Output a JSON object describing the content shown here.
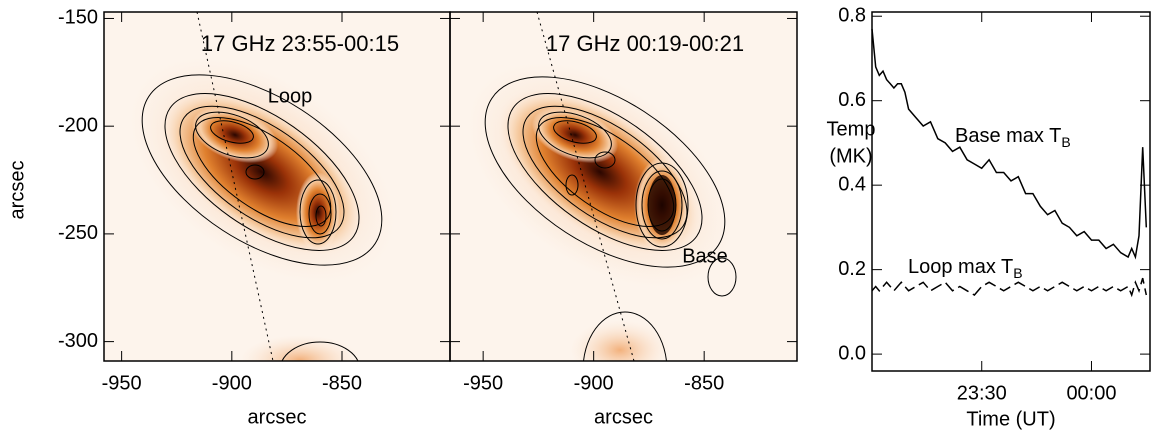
{
  "chart_data": [
    {
      "type": "image",
      "title": "17 GHz 23:55-00:15",
      "xlabel": "arcsec",
      "ylabel": "arcsec",
      "xlim": [
        -958,
        -801
      ],
      "ylim": [
        -309,
        -147
      ],
      "xticks": [
        -950,
        -900,
        -850
      ],
      "yticks": [
        -150,
        -200,
        -250,
        -300
      ],
      "annotations": [
        "Loop"
      ]
    },
    {
      "type": "image",
      "title": "17 GHz 00:19-00:21",
      "xlabel": "arcsec",
      "xlim": [
        -965,
        -808
      ],
      "ylim": [
        -309,
        -147
      ],
      "xticks": [
        -950,
        -900,
        -850
      ],
      "yticks": [
        -150,
        -200,
        -250,
        -300
      ],
      "annotations": [
        "Base"
      ]
    },
    {
      "type": "line",
      "xlabel": "Time (UT)",
      "ylabel_lines": [
        "Temp",
        "(MK)"
      ],
      "xlim": [
        1380,
        1456
      ],
      "ylim": [
        -0.04,
        0.81
      ],
      "xticks": [
        {
          "value": 1410,
          "label": "23:30"
        },
        {
          "value": 1440,
          "label": "00:00"
        }
      ],
      "yticks": [
        {
          "value": 0,
          "label": "0.0"
        },
        0.2,
        0.4,
        0.6,
        0.8
      ],
      "x": [
        1380,
        1381,
        1382,
        1383,
        1384,
        1385,
        1386,
        1387,
        1388,
        1389,
        1390,
        1392,
        1394,
        1396,
        1398,
        1400,
        1402,
        1404,
        1406,
        1408,
        1410,
        1412,
        1414,
        1416,
        1418,
        1420,
        1422,
        1424,
        1426,
        1428,
        1430,
        1432,
        1434,
        1436,
        1438,
        1440,
        1442,
        1444,
        1446,
        1448,
        1450,
        1451,
        1452,
        1453,
        1454,
        1455
      ],
      "series": [
        {
          "name": "Base max T",
          "subscript": "B",
          "color": "#000000",
          "dash": false,
          "values": [
            0.77,
            0.68,
            0.66,
            0.67,
            0.65,
            0.64,
            0.63,
            0.64,
            0.64,
            0.62,
            0.58,
            0.56,
            0.54,
            0.55,
            0.51,
            0.5,
            0.48,
            0.49,
            0.46,
            0.45,
            0.44,
            0.46,
            0.43,
            0.43,
            0.41,
            0.42,
            0.38,
            0.38,
            0.35,
            0.33,
            0.34,
            0.31,
            0.3,
            0.28,
            0.29,
            0.27,
            0.27,
            0.25,
            0.26,
            0.24,
            0.23,
            0.25,
            0.23,
            0.28,
            0.49,
            0.3
          ]
        },
        {
          "name": "Loop max T",
          "subscript": "B",
          "color": "#000000",
          "dash": true,
          "values": [
            0.15,
            0.16,
            0.15,
            0.16,
            0.17,
            0.16,
            0.15,
            0.16,
            0.17,
            0.16,
            0.15,
            0.16,
            0.17,
            0.15,
            0.16,
            0.17,
            0.15,
            0.16,
            0.15,
            0.14,
            0.16,
            0.17,
            0.16,
            0.15,
            0.16,
            0.17,
            0.16,
            0.15,
            0.16,
            0.15,
            0.16,
            0.17,
            0.16,
            0.15,
            0.16,
            0.15,
            0.16,
            0.15,
            0.16,
            0.15,
            0.16,
            0.14,
            0.17,
            0.15,
            0.18,
            0.14
          ]
        }
      ]
    }
  ]
}
